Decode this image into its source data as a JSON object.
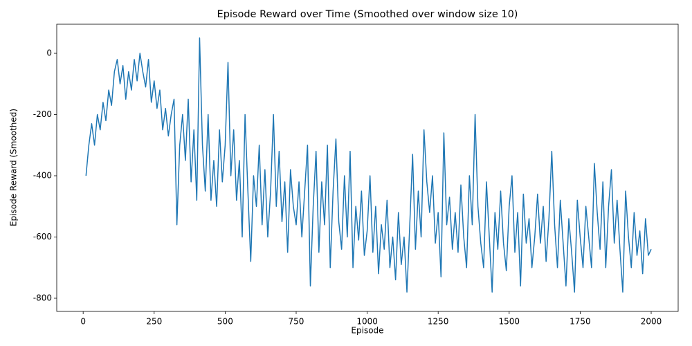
{
  "chart_data": {
    "type": "line",
    "title": "Episode Reward over Time (Smoothed over window size 10)",
    "x_label": "Episode",
    "y_label": "Episode Reward (Smoothed)",
    "color": "#1f77b4",
    "x": [
      10,
      20,
      30,
      40,
      50,
      60,
      70,
      80,
      90,
      100,
      110,
      120,
      130,
      140,
      150,
      160,
      170,
      180,
      190,
      200,
      210,
      220,
      230,
      240,
      250,
      260,
      270,
      280,
      290,
      300,
      310,
      320,
      330,
      340,
      350,
      360,
      370,
      380,
      390,
      400,
      410,
      420,
      430,
      440,
      450,
      460,
      470,
      480,
      490,
      500,
      510,
      520,
      530,
      540,
      550,
      560,
      570,
      580,
      590,
      600,
      610,
      620,
      630,
      640,
      650,
      660,
      670,
      680,
      690,
      700,
      710,
      720,
      730,
      740,
      750,
      760,
      770,
      780,
      790,
      800,
      810,
      820,
      830,
      840,
      850,
      860,
      870,
      880,
      890,
      900,
      910,
      920,
      930,
      940,
      950,
      960,
      970,
      980,
      990,
      1000,
      1010,
      1020,
      1030,
      1040,
      1050,
      1060,
      1070,
      1080,
      1090,
      1100,
      1110,
      1120,
      1130,
      1140,
      1150,
      1160,
      1170,
      1180,
      1190,
      1200,
      1210,
      1220,
      1230,
      1240,
      1250,
      1260,
      1270,
      1280,
      1290,
      1300,
      1310,
      1320,
      1330,
      1340,
      1350,
      1360,
      1370,
      1380,
      1390,
      1400,
      1410,
      1420,
      1430,
      1440,
      1450,
      1460,
      1470,
      1480,
      1490,
      1500,
      1510,
      1520,
      1530,
      1540,
      1550,
      1560,
      1570,
      1580,
      1590,
      1600,
      1610,
      1620,
      1630,
      1640,
      1650,
      1660,
      1670,
      1680,
      1690,
      1700,
      1710,
      1720,
      1730,
      1740,
      1750,
      1760,
      1770,
      1780,
      1790,
      1800,
      1810,
      1820,
      1830,
      1840,
      1850,
      1860,
      1870,
      1880,
      1890,
      1900,
      1910,
      1920,
      1930,
      1940,
      1950,
      1960,
      1970,
      1980,
      1990,
      2000
    ],
    "values": [
      -400,
      -300,
      -230,
      -300,
      -200,
      -250,
      -160,
      -220,
      -120,
      -170,
      -60,
      -20,
      -100,
      -40,
      -150,
      -60,
      -120,
      -20,
      -90,
      0,
      -60,
      -110,
      -20,
      -160,
      -90,
      -180,
      -120,
      -250,
      -180,
      -270,
      -200,
      -150,
      -560,
      -300,
      -200,
      -350,
      -150,
      -420,
      -250,
      -480,
      50,
      -300,
      -450,
      -200,
      -480,
      -350,
      -500,
      -250,
      -420,
      -300,
      -30,
      -400,
      -250,
      -480,
      -350,
      -600,
      -200,
      -450,
      -680,
      -400,
      -500,
      -300,
      -560,
      -380,
      -600,
      -450,
      -200,
      -500,
      -320,
      -550,
      -420,
      -650,
      -380,
      -500,
      -560,
      -420,
      -600,
      -450,
      -300,
      -760,
      -500,
      -320,
      -650,
      -420,
      -560,
      -300,
      -700,
      -450,
      -280,
      -550,
      -640,
      -400,
      -600,
      -320,
      -700,
      -500,
      -610,
      -450,
      -660,
      -580,
      -400,
      -650,
      -500,
      -720,
      -560,
      -640,
      -480,
      -700,
      -600,
      -740,
      -520,
      -690,
      -600,
      -780,
      -560,
      -330,
      -640,
      -450,
      -600,
      -250,
      -420,
      -520,
      -400,
      -620,
      -520,
      -730,
      -260,
      -560,
      -470,
      -640,
      -520,
      -650,
      -430,
      -600,
      -700,
      -400,
      -560,
      -200,
      -500,
      -620,
      -700,
      -420,
      -600,
      -780,
      -520,
      -640,
      -450,
      -620,
      -710,
      -500,
      -400,
      -650,
      -520,
      -760,
      -460,
      -620,
      -540,
      -700,
      -600,
      -460,
      -620,
      -500,
      -680,
      -540,
      -320,
      -560,
      -700,
      -480,
      -620,
      -760,
      -540,
      -650,
      -780,
      -480,
      -600,
      -700,
      -500,
      -600,
      -700,
      -360,
      -520,
      -640,
      -420,
      -700,
      -500,
      -380,
      -620,
      -480,
      -640,
      -780,
      -450,
      -600,
      -700,
      -520,
      -660,
      -580,
      -720,
      -540,
      -660,
      -640
    ],
    "xlim": [
      -93,
      2095
    ],
    "ylim": [
      -843,
      95
    ],
    "xticks": [
      0,
      250,
      500,
      750,
      1000,
      1250,
      1500,
      1750,
      2000
    ],
    "yticks": [
      -800,
      -600,
      -400,
      -200,
      0
    ]
  }
}
